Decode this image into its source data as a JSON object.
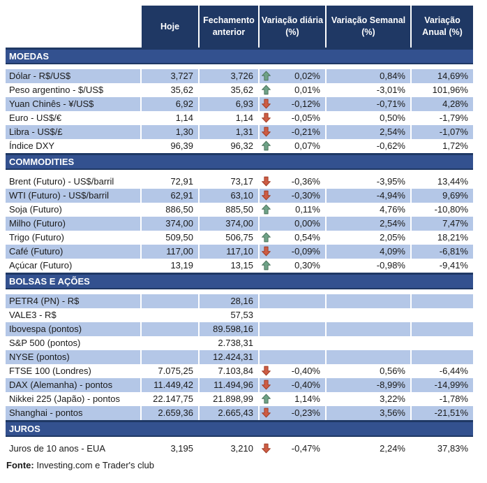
{
  "table": {
    "header": {
      "columns": [
        {
          "id": "hoje",
          "label": "Hoje"
        },
        {
          "id": "fechamento",
          "label": "Fechamento\nanterior"
        },
        {
          "id": "daily",
          "label": "Variação diária\n(%)"
        },
        {
          "id": "weekly",
          "label": "Variação Semanal\n(%)"
        },
        {
          "id": "annual",
          "label": "Variação\nAnual (%)"
        }
      ]
    },
    "sections": [
      {
        "title": "MOEDAS",
        "first_row_shaded": true,
        "rows": [
          {
            "label": "Dólar - R$/US$",
            "hoje": "3,727",
            "fechamento": "3,726",
            "arrow": "up",
            "daily": "0,02%",
            "weekly": "0,84%",
            "annual": "14,69%"
          },
          {
            "label": "Peso argentino - $/US$",
            "hoje": "35,62",
            "fechamento": "35,62",
            "arrow": "up",
            "daily": "0,01%",
            "weekly": "-3,01%",
            "annual": "101,96%"
          },
          {
            "label": "Yuan Chinês - ¥/US$",
            "hoje": "6,92",
            "fechamento": "6,93",
            "arrow": "down",
            "daily": "-0,12%",
            "weekly": "-0,71%",
            "annual": "4,28%"
          },
          {
            "label": "Euro - US$/€",
            "hoje": "1,14",
            "fechamento": "1,14",
            "arrow": "down",
            "daily": "-0,05%",
            "weekly": "0,50%",
            "annual": "-1,79%"
          },
          {
            "label": "Libra - US$/£",
            "hoje": "1,30",
            "fechamento": "1,31",
            "arrow": "down",
            "daily": "-0,21%",
            "weekly": "2,54%",
            "annual": "-1,07%"
          },
          {
            "label": "Índice DXY",
            "hoje": "96,39",
            "fechamento": "96,32",
            "arrow": "up",
            "daily": "0,07%",
            "weekly": "-0,62%",
            "annual": "1,72%"
          }
        ]
      },
      {
        "title": "COMMODITIES",
        "first_row_shaded": false,
        "rows": [
          {
            "label": "Brent (Futuro) - US$/barril",
            "hoje": "72,91",
            "fechamento": "73,17",
            "arrow": "down",
            "daily": "-0,36%",
            "weekly": "-3,95%",
            "annual": "13,44%"
          },
          {
            "label": "WTI (Futuro) - US$/barril",
            "hoje": "62,91",
            "fechamento": "63,10",
            "arrow": "down",
            "daily": "-0,30%",
            "weekly": "-4,94%",
            "annual": "9,69%"
          },
          {
            "label": "Soja (Futuro)",
            "hoje": "886,50",
            "fechamento": "885,50",
            "arrow": "up",
            "daily": "0,11%",
            "weekly": "4,76%",
            "annual": "-10,80%"
          },
          {
            "label": "Milho (Futuro)",
            "hoje": "374,00",
            "fechamento": "374,00",
            "arrow": "none",
            "daily": "0,00%",
            "weekly": "2,54%",
            "annual": "7,47%"
          },
          {
            "label": "Trigo (Futuro)",
            "hoje": "509,50",
            "fechamento": "506,75",
            "arrow": "up",
            "daily": "0,54%",
            "weekly": "2,05%",
            "annual": "18,21%"
          },
          {
            "label": "Café (Futuro)",
            "hoje": "117,00",
            "fechamento": "117,10",
            "arrow": "down",
            "daily": "-0,09%",
            "weekly": "4,09%",
            "annual": "-6,81%"
          },
          {
            "label": "Açúcar (Futuro)",
            "hoje": "13,19",
            "fechamento": "13,15",
            "arrow": "up",
            "daily": "0,30%",
            "weekly": "-0,98%",
            "annual": "-9,41%"
          }
        ]
      },
      {
        "title": "BOLSAS E AÇÕES",
        "first_row_shaded": true,
        "rows": [
          {
            "label": "PETR4 (PN) - R$",
            "hoje": "",
            "fechamento": "28,16",
            "arrow": "none",
            "daily": "",
            "weekly": "",
            "annual": ""
          },
          {
            "label": "VALE3 - R$",
            "hoje": "",
            "fechamento": "57,53",
            "arrow": "none",
            "daily": "",
            "weekly": "",
            "annual": ""
          },
          {
            "label": "Ibovespa (pontos)",
            "hoje": "",
            "fechamento": "89.598,16",
            "arrow": "none",
            "daily": "",
            "weekly": "",
            "annual": ""
          },
          {
            "label": "S&P 500 (pontos)",
            "hoje": "",
            "fechamento": "2.738,31",
            "arrow": "none",
            "daily": "",
            "weekly": "",
            "annual": ""
          },
          {
            "label": "NYSE (pontos)",
            "hoje": "",
            "fechamento": "12.424,31",
            "arrow": "none",
            "daily": "",
            "weekly": "",
            "annual": ""
          },
          {
            "label": "FTSE 100 (Londres)",
            "hoje": "7.075,25",
            "fechamento": "7.103,84",
            "arrow": "down",
            "daily": "-0,40%",
            "weekly": "0,56%",
            "annual": "-6,44%"
          },
          {
            "label": "DAX (Alemanha) - pontos",
            "hoje": "11.449,42",
            "fechamento": "11.494,96",
            "arrow": "down",
            "daily": "-0,40%",
            "weekly": "-8,99%",
            "annual": "-14,99%"
          },
          {
            "label": "Nikkei 225 (Japão) - pontos",
            "hoje": "22.147,75",
            "fechamento": "21.898,99",
            "arrow": "up",
            "daily": "1,14%",
            "weekly": "3,22%",
            "annual": "-1,78%"
          },
          {
            "label": "Shanghai - pontos",
            "hoje": "2.659,36",
            "fechamento": "2.665,43",
            "arrow": "down",
            "daily": "-0,23%",
            "weekly": "3,56%",
            "annual": "-21,51%"
          }
        ]
      },
      {
        "title": "JUROS",
        "first_row_shaded": false,
        "rows": [
          {
            "label": "Juros de 10 anos - EUA",
            "hoje": "3,195",
            "fechamento": "3,210",
            "arrow": "down",
            "daily": "-0,47%",
            "weekly": "2,24%",
            "annual": "37,83%"
          }
        ]
      }
    ]
  },
  "footer": {
    "label": "Fonte:",
    "text": " Investing.com e Trader's club"
  },
  "colors": {
    "header_bg": "#1F3864",
    "band_bg": "#33518F",
    "band_border": "#1F3864",
    "row_shaded": "#B4C7E7",
    "text": "#1A1A1A",
    "header_text": "#FFFFFF",
    "arrow_up_fill": "#6EA287",
    "arrow_up_stroke": "#4A7159",
    "arrow_down_fill": "#CD5C44",
    "arrow_down_stroke": "#9E3A24"
  },
  "icons": {
    "up": "arrow-up-icon",
    "down": "arrow-down-icon"
  }
}
